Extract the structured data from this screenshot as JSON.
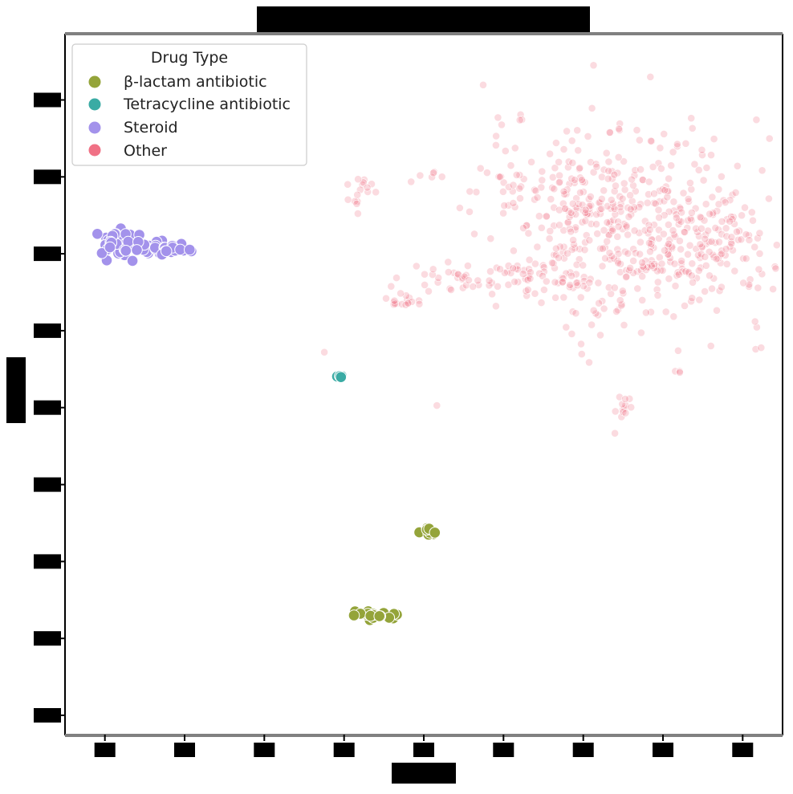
{
  "chart_data": {
    "type": "scatter",
    "title": "",
    "xlabel": "",
    "ylabel": "",
    "xlim": [
      -2.5,
      42.5
    ],
    "ylim": [
      -12.5,
      78.5
    ],
    "grid": false,
    "legend": {
      "title": "Drug Type",
      "placement": "top-left"
    },
    "series": [
      {
        "name": "β-lactam antibiotic",
        "color": "#94a43a",
        "clusters": [
          {
            "cx": 17,
            "cy": 3,
            "sx": 0.7,
            "sy": 0.3,
            "n": 22
          },
          {
            "cx": 20.2,
            "cy": 14,
            "sx": 0.3,
            "sy": 0.3,
            "n": 10
          }
        ]
      },
      {
        "name": "Tetracycline antibiotic",
        "color": "#3aaba4",
        "clusters": [
          {
            "cx": 14.6,
            "cy": 34,
            "sx": 0.15,
            "sy": 0.1,
            "n": 4
          }
        ]
      },
      {
        "name": "Steroid",
        "color": "#a392eb",
        "clusters": [
          {
            "cx": 0.8,
            "cy": 51.5,
            "sx": 0.6,
            "sy": 0.9,
            "n": 35
          },
          {
            "cx": 2.5,
            "cy": 50.8,
            "sx": 0.6,
            "sy": 0.5,
            "n": 25
          },
          {
            "cx": 4.5,
            "cy": 50.5,
            "sx": 0.6,
            "sy": 0.3,
            "n": 20
          }
        ]
      },
      {
        "name": "Other",
        "color": "#f07185",
        "clusters": [
          {
            "cx": 33,
            "cy": 53,
            "sx": 4.5,
            "sy": 6.5,
            "n": 420
          },
          {
            "cx": 29,
            "cy": 58,
            "sx": 2.5,
            "sy": 2.5,
            "n": 80
          },
          {
            "cx": 38,
            "cy": 51,
            "sx": 1.8,
            "sy": 3.5,
            "n": 90
          },
          {
            "cx": 27.5,
            "cy": 47,
            "sx": 2.0,
            "sy": 1.2,
            "n": 50
          },
          {
            "cx": 22,
            "cy": 47,
            "sx": 1.6,
            "sy": 0.8,
            "n": 30
          },
          {
            "cx": 18.5,
            "cy": 44,
            "sx": 0.6,
            "sy": 0.8,
            "n": 18
          },
          {
            "cx": 16,
            "cy": 58,
            "sx": 0.5,
            "sy": 1.3,
            "n": 16
          },
          {
            "cx": 20.5,
            "cy": 60,
            "sx": 0.6,
            "sy": 0.4,
            "n": 6
          },
          {
            "cx": 32.5,
            "cy": 30.5,
            "sx": 0.2,
            "sy": 0.9,
            "n": 12
          },
          {
            "cx": 36,
            "cy": 34.5,
            "sx": 0.15,
            "sy": 0.15,
            "n": 3
          },
          {
            "cx": 26,
            "cy": 67.5,
            "sx": 0.1,
            "sy": 0.4,
            "n": 3
          },
          {
            "cx": 32,
            "cy": 66,
            "sx": 0.2,
            "sy": 0.8,
            "n": 4
          }
        ]
      }
    ]
  }
}
